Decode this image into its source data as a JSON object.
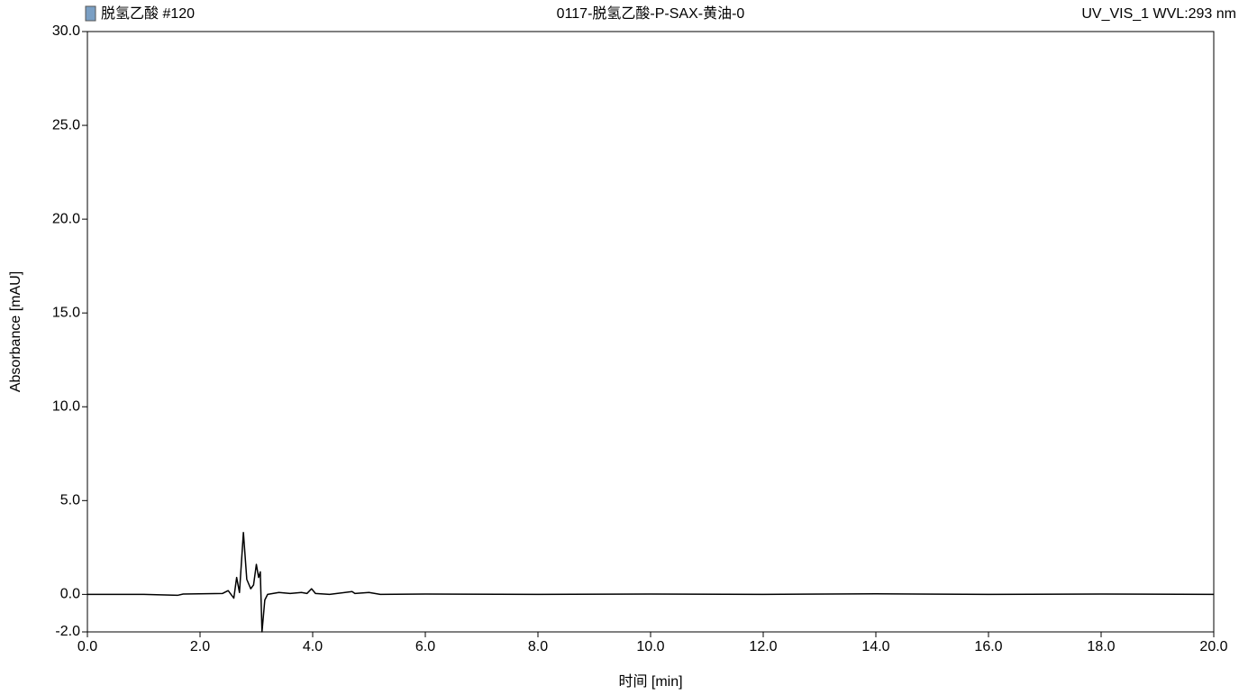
{
  "chart_data": {
    "type": "line",
    "sample": "脱氢乙酸 #120",
    "title": "0117-脱氢乙酸-P-SAX-黄油-0",
    "channel": "UV_VIS_1 WVL:293 nm",
    "x_label": "时间 [min]",
    "y_label": "Absorbance [mAU]",
    "xlim": [
      0,
      20
    ],
    "ylim": [
      -2,
      30
    ],
    "xticks": [
      {
        "value": 0,
        "label": "0.0"
      },
      {
        "value": 2,
        "label": "2.0"
      },
      {
        "value": 4,
        "label": "4.0"
      },
      {
        "value": 6,
        "label": "6.0"
      },
      {
        "value": 8,
        "label": "8.0"
      },
      {
        "value": 10,
        "label": "10.0"
      },
      {
        "value": 12,
        "label": "12.0"
      },
      {
        "value": 14,
        "label": "14.0"
      },
      {
        "value": 16,
        "label": "16.0"
      },
      {
        "value": 18,
        "label": "18.0"
      },
      {
        "value": 20,
        "label": "20.0"
      }
    ],
    "yticks": [
      {
        "value": -2,
        "label": "-2.0"
      },
      {
        "value": 0,
        "label": "0.0"
      },
      {
        "value": 5,
        "label": "5.0"
      },
      {
        "value": 10,
        "label": "10.0"
      },
      {
        "value": 15,
        "label": "15.0"
      },
      {
        "value": 20,
        "label": "20.0"
      },
      {
        "value": 25,
        "label": "25.0"
      },
      {
        "value": 30,
        "label": "30.0"
      }
    ],
    "color": "#000000",
    "x": [
      0,
      1.0,
      1.6,
      1.7,
      2.4,
      2.5,
      2.6,
      2.65,
      2.7,
      2.77,
      2.83,
      2.9,
      2.95,
      3.0,
      3.04,
      3.07,
      3.1,
      3.15,
      3.2,
      3.4,
      3.6,
      3.8,
      3.9,
      3.98,
      4.05,
      4.3,
      4.7,
      4.75,
      5.0,
      5.2,
      6,
      8,
      10,
      12,
      14,
      16,
      18,
      20
    ],
    "values": [
      0,
      0,
      -0.05,
      0.02,
      0.05,
      0.2,
      -0.2,
      0.9,
      0.1,
      3.3,
      0.8,
      0.3,
      0.5,
      1.6,
      0.9,
      1.2,
      -2.0,
      -0.3,
      0,
      0.1,
      0.05,
      0.1,
      0.05,
      0.3,
      0.05,
      0,
      0.15,
      0.05,
      0.1,
      0,
      0.02,
      0,
      0.02,
      0,
      0.03,
      0,
      0.02,
      0
    ]
  }
}
